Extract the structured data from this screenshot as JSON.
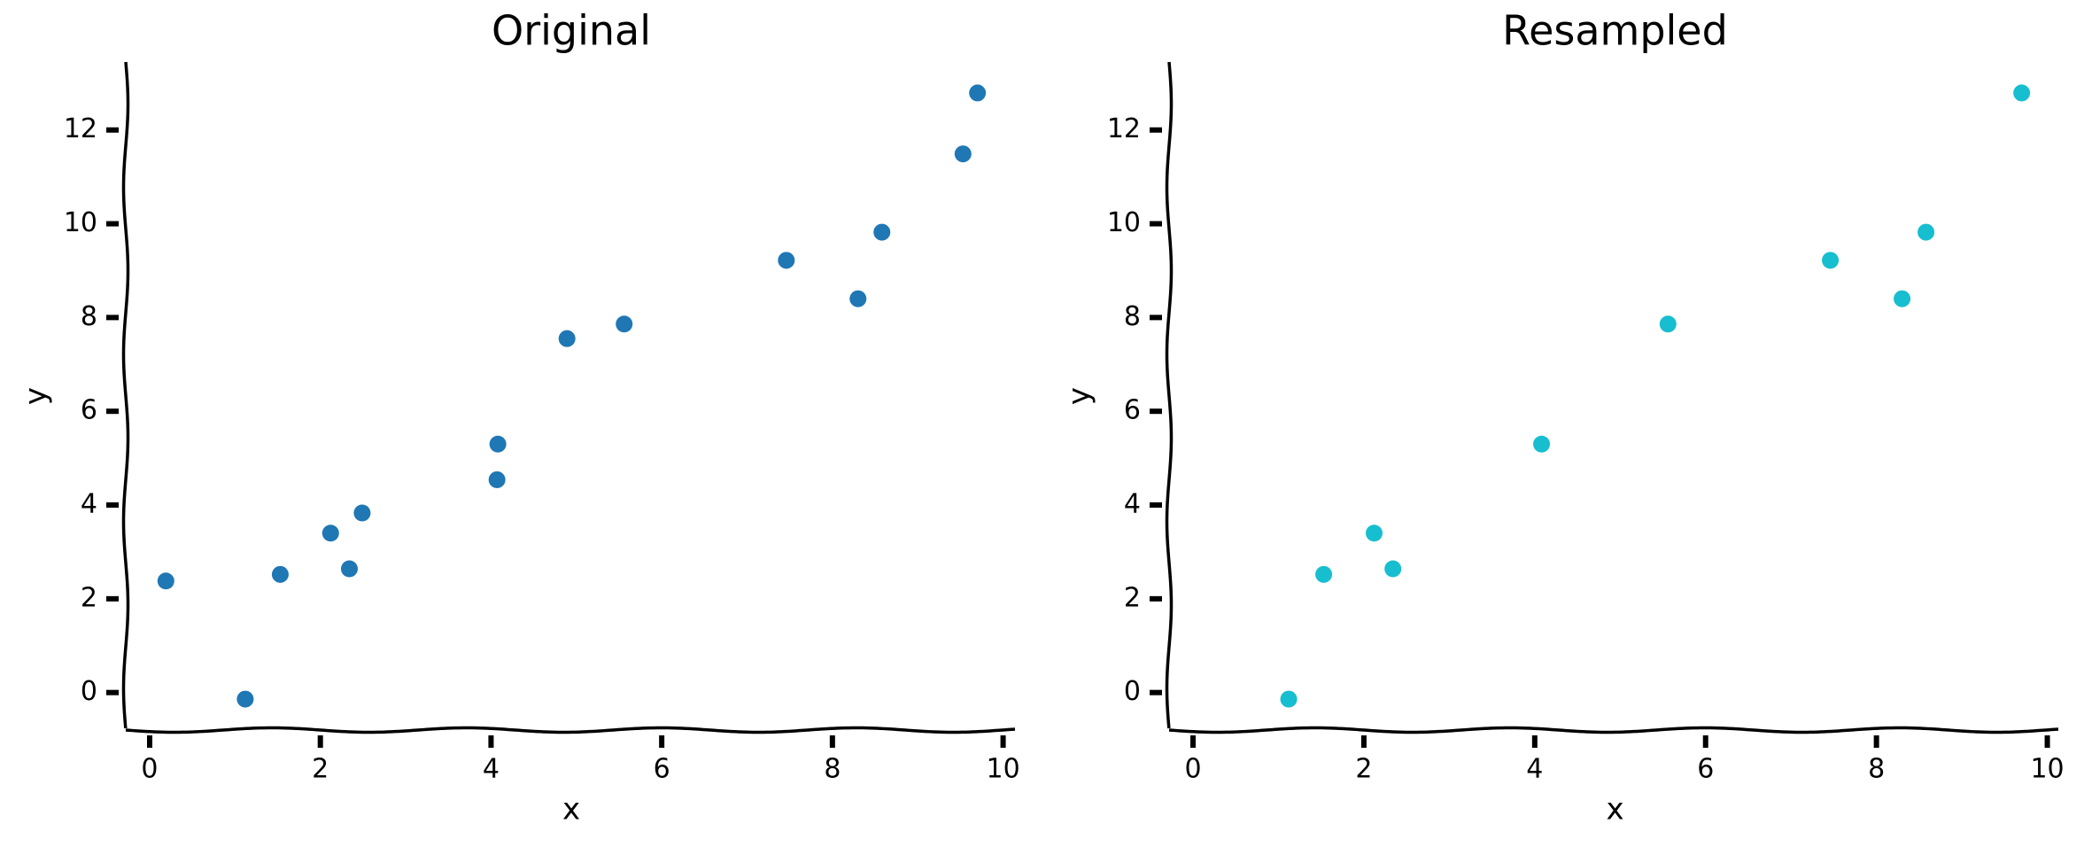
{
  "chart_data": [
    {
      "type": "scatter",
      "title": "Original",
      "xlabel": "x",
      "ylabel": "y",
      "color": "#1f77b4",
      "x": [
        0.19,
        1.12,
        1.53,
        2.12,
        2.34,
        2.49,
        4.07,
        4.08,
        4.89,
        5.56,
        7.46,
        8.3,
        8.58,
        9.53,
        9.7
      ],
      "y": [
        2.38,
        -0.14,
        2.52,
        3.4,
        2.64,
        3.83,
        4.54,
        5.3,
        7.55,
        7.86,
        9.22,
        8.4,
        9.82,
        11.49,
        12.79
      ],
      "xlim": [
        -0.28,
        10.16
      ],
      "ylim": [
        -0.8,
        13.45
      ],
      "xticks": [
        0,
        2,
        4,
        6,
        8,
        10
      ],
      "yticks": [
        0,
        2,
        4,
        6,
        8,
        10,
        12
      ]
    },
    {
      "type": "scatter",
      "title": "Resampled",
      "xlabel": "x",
      "ylabel": "y",
      "color": "#17becf",
      "x": [
        1.12,
        1.53,
        2.12,
        2.34,
        4.08,
        5.56,
        7.46,
        8.3,
        8.58,
        9.7
      ],
      "y": [
        -0.14,
        2.52,
        3.4,
        2.64,
        5.3,
        7.86,
        9.22,
        8.4,
        9.82,
        12.79
      ],
      "xlim": [
        -0.28,
        10.16
      ],
      "ylim": [
        -0.8,
        13.45
      ],
      "xticks": [
        0,
        2,
        4,
        6,
        8,
        10
      ],
      "yticks": [
        0,
        2,
        4,
        6,
        8,
        10,
        12
      ]
    }
  ]
}
